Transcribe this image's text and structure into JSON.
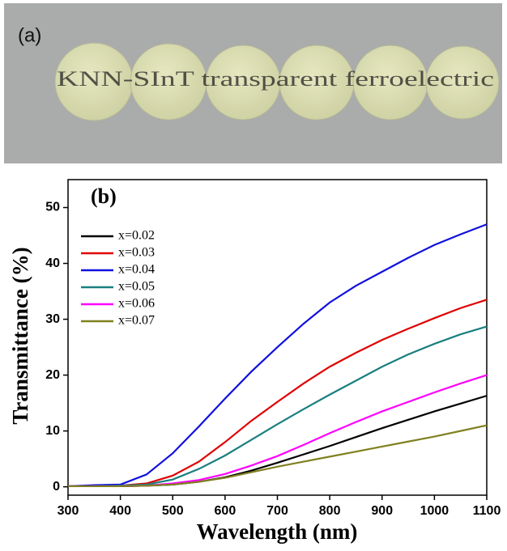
{
  "panel_a": {
    "label": "(a)",
    "photo_text": "KNN-SInT transparent ferroelectric"
  },
  "chart_data": {
    "type": "line",
    "label": "(b)",
    "x_label": "Wavelength (nm)",
    "y_label": "Transmittance (%)",
    "x": [
      300,
      350,
      400,
      450,
      500,
      550,
      600,
      650,
      700,
      750,
      800,
      850,
      900,
      950,
      1000,
      1050,
      1100
    ],
    "series": [
      {
        "name": "x=0.02",
        "color": "#000000",
        "values": [
          0.1,
          0.1,
          0.1,
          0.2,
          0.4,
          0.9,
          1.7,
          2.9,
          4.3,
          5.8,
          7.3,
          8.9,
          10.5,
          12,
          13.5,
          14.9,
          16.3
        ]
      },
      {
        "name": "x=0.03",
        "color": "#e00000",
        "values": [
          0.1,
          0.1,
          0.2,
          0.6,
          2,
          4.5,
          8,
          11.8,
          15.2,
          18.5,
          21.5,
          24,
          26.3,
          28.3,
          30.2,
          32,
          33.5
        ]
      },
      {
        "name": "x=0.04",
        "color": "#1010e0",
        "values": [
          0.1,
          0.3,
          0.4,
          2.2,
          6,
          10.8,
          15.8,
          20.6,
          25,
          29.2,
          33,
          36,
          38.5,
          41,
          43.3,
          45.2,
          47
        ]
      },
      {
        "name": "x=0.05",
        "color": "#1a7f7f",
        "values": [
          0.1,
          0.1,
          0.2,
          0.4,
          1.3,
          3.2,
          5.6,
          8.4,
          11.2,
          13.9,
          16.5,
          19,
          21.5,
          23.7,
          25.6,
          27.3,
          28.7
        ]
      },
      {
        "name": "x=0.06",
        "color": "#ff00ff",
        "values": [
          0.1,
          0.1,
          0.1,
          0.2,
          0.6,
          1.2,
          2.3,
          3.8,
          5.5,
          7.5,
          9.6,
          11.6,
          13.5,
          15.2,
          16.9,
          18.5,
          20
        ]
      },
      {
        "name": "x=0.07",
        "color": "#808020",
        "values": [
          0.1,
          0.1,
          0.1,
          0.2,
          0.4,
          0.9,
          1.6,
          2.6,
          3.6,
          4.5,
          5.4,
          6.3,
          7.2,
          8.1,
          9,
          10,
          11
        ]
      }
    ],
    "xlim": [
      300,
      1100
    ],
    "xticks": [
      300,
      400,
      500,
      600,
      700,
      800,
      900,
      1000,
      1100
    ],
    "ylim": [
      -1.5,
      55
    ],
    "yticks": [
      0,
      10,
      20,
      30,
      40,
      50
    ],
    "legend": "upper-left"
  }
}
